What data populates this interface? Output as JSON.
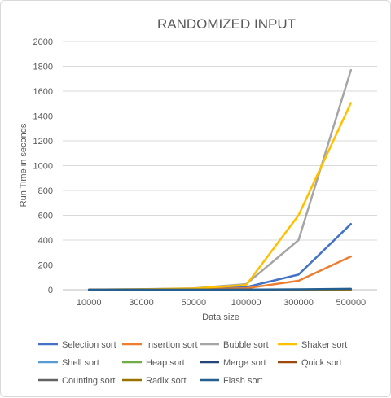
{
  "chart_data": {
    "type": "line",
    "title": "RANDOMIZED INPUT",
    "xlabel": "Data size",
    "ylabel": "Run Time in seconds",
    "categories": [
      "10000",
      "30000",
      "50000",
      "100000",
      "300000",
      "500000"
    ],
    "ylim": [
      0,
      2000
    ],
    "yticks": [
      0,
      200,
      400,
      600,
      800,
      1000,
      1200,
      1400,
      1600,
      1800,
      2000
    ],
    "grid": true,
    "legend_position": "bottom",
    "series": [
      {
        "name": "Selection sort",
        "color": "#4472C4",
        "values": [
          0.2,
          1.8,
          5,
          20,
          122,
          530
        ]
      },
      {
        "name": "Insertion sort",
        "color": "#ED7D31",
        "values": [
          0.1,
          1,
          3,
          12,
          72,
          268
        ]
      },
      {
        "name": "Bubble sort",
        "color": "#A5A5A5",
        "values": [
          0.5,
          4,
          12,
          45,
          400,
          1770
        ]
      },
      {
        "name": "Shaker sort",
        "color": "#FFC000",
        "values": [
          0.4,
          3.5,
          10,
          38,
          600,
          1505
        ]
      },
      {
        "name": "Shell sort",
        "color": "#5B9BD5",
        "values": [
          0,
          0,
          0,
          0.1,
          0.2,
          0.3
        ]
      },
      {
        "name": "Heap sort",
        "color": "#70AD47",
        "values": [
          0,
          0,
          0,
          0.1,
          0.2,
          0.3
        ]
      },
      {
        "name": "Merge sort",
        "color": "#264478",
        "values": [
          0,
          0,
          0,
          0.1,
          0.3,
          0.5
        ]
      },
      {
        "name": "Quick sort",
        "color": "#9E480E",
        "values": [
          0,
          0,
          0,
          0.1,
          0.1,
          0.2
        ]
      },
      {
        "name": "Counting sort",
        "color": "#636363",
        "values": [
          0,
          0,
          0,
          0,
          0,
          0
        ]
      },
      {
        "name": "Radix sort",
        "color": "#997300",
        "values": [
          0,
          0,
          0,
          0,
          0.1,
          0.1
        ]
      },
      {
        "name": "Flash sort",
        "color": "#255E91",
        "values": [
          0,
          0,
          0,
          0.5,
          3,
          7
        ]
      }
    ]
  }
}
